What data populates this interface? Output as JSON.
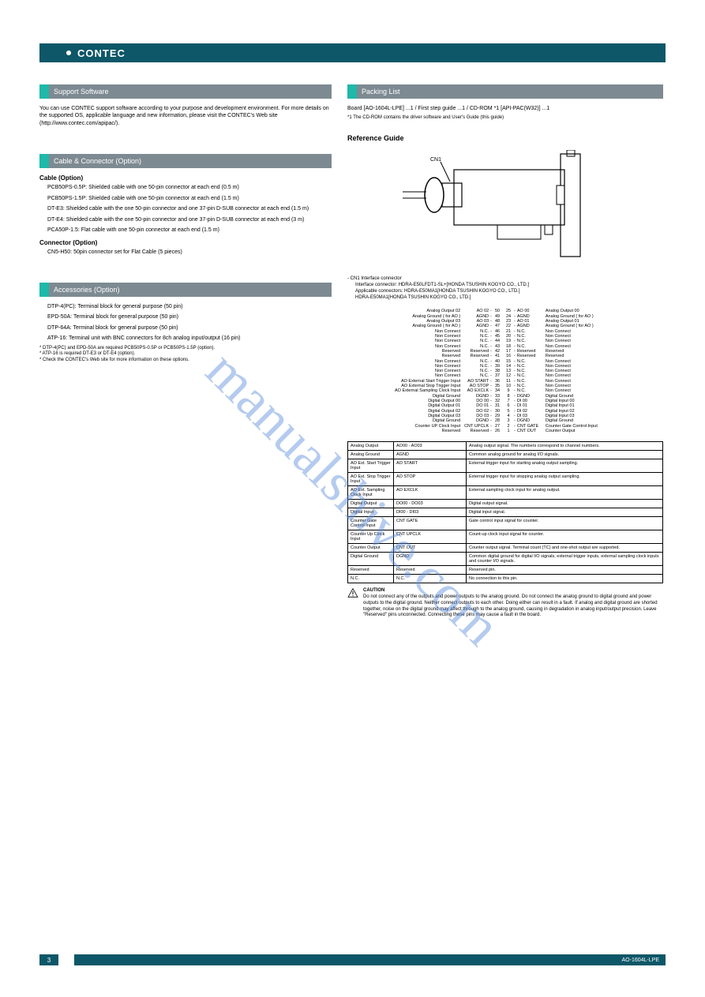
{
  "header": {
    "brand": "CONTEC"
  },
  "left": {
    "sec1": {
      "title": "Support Software",
      "body": "You can use CONTEC support software according to your purpose and development environment. For more details on the supported OS, applicable language and new information, please visit the CONTEC's Web site (http://www.contec.com/apipac/)."
    },
    "sec2": {
      "title": "Cable & Connector (Option)",
      "sub1": "Cable (Option)",
      "cables": [
        "PCB50PS-0.5P: Shielded cable with one 50-pin connector at each end (0.5 m)",
        "PCB50PS-1.5P: Shielded cable with one 50-pin connector at each end (1.5 m)",
        "DT-E3: Shielded cable with the one 50-pin connector and one 37-pin D-SUB connector at each end (1.5 m)",
        "DT-E4: Shielded cable with the one 50-pin connector and one 37-pin D-SUB connector at each end (3 m)",
        "PCA50P-1.5: Flat cable with one 50-pin connector at each end (1.5 m)"
      ],
      "sub2": "Connector (Option)",
      "connector": "CN5-H50: 50pin connector set for Flat Cable (5 pieces)"
    },
    "sec3": {
      "title": "Accessories (Option)",
      "items": [
        "DTP-4(PC): Terminal block for general purpose (50 pin)",
        "EPD-50A: Terminal block for general purpose (50 pin)",
        "DTP-64A: Terminal block for general purpose (50 pin)",
        "ATP-16: Terminal unit with BNC connectors for 8ch analog input/output (16 pin)"
      ],
      "notes": [
        "* DTP-4(PC) and EPD-50A are required PCB50PS-0.5P or PCB50PS-1.5P (option).",
        "* ATP-16 is required DT-E3 or DT-E4 (option).",
        "* Check the CONTEC's Web site for more information on these options."
      ]
    }
  },
  "right": {
    "sec_title": "Packing List",
    "packing": "Board [AO-1604L-LPE] ...1 / First step guide ...1 / CD-ROM *1 [API-PAC(W32)] ...1",
    "packing_note": "*1 The CD-ROM contains the driver software and User's Guide (this guide)",
    "ref_title": "Reference Guide",
    "connector_caption": "- CN1 Interface connector",
    "cn1_info": [
      "Interface connector: HDRA-E50LFDT1-SL+[HONDA TSUSHIN KOGYO CO., LTD.]",
      "Applicable connectors: HDRA-E50MA1[HONDA TSUSHIN KOGYO CO., LTD.]",
      "HDRA-E50MA1[HONDA TSUSHIN KOGYO CO., LTD.]"
    ],
    "pins": [
      [
        "Analog Output 02",
        "AO 02",
        "50",
        "25",
        "AO 00",
        "Analog Output 00"
      ],
      [
        "Analog Ground ( for AO )",
        "AGND",
        "49",
        "24",
        "AGND",
        "Analog Ground ( for AO )"
      ],
      [
        "Analog Output 03",
        "AO 03",
        "48",
        "23",
        "AO 01",
        "Analog Output 01"
      ],
      [
        "Analog Ground ( for AO )",
        "AGND",
        "47",
        "22",
        "AGND",
        "Analog Ground ( for AO )"
      ],
      [
        "Non Connect",
        "N.C.",
        "46",
        "21",
        "N.C.",
        "Non Connect"
      ],
      [
        "Non Connect",
        "N.C.",
        "45",
        "20",
        "N.C.",
        "Non Connect"
      ],
      [
        "Non Connect",
        "N.C.",
        "44",
        "19",
        "N.C.",
        "Non Connect"
      ],
      [
        "Non Connect",
        "N.C.",
        "43",
        "18",
        "N.C.",
        "Non Connect"
      ],
      [
        "Reserved",
        "Reserved",
        "42",
        "17",
        "Reserved",
        "Reserved"
      ],
      [
        "Reserved",
        "Reserved",
        "41",
        "16",
        "Reserved",
        "Reserved"
      ],
      [
        "Non Connect",
        "N.C.",
        "40",
        "15",
        "N.C.",
        "Non Connect"
      ],
      [
        "Non Connect",
        "N.C.",
        "39",
        "14",
        "N.C.",
        "Non Connect"
      ],
      [
        "Non Connect",
        "N.C.",
        "38",
        "13",
        "N.C.",
        "Non Connect"
      ],
      [
        "Non Connect",
        "N.C.",
        "37",
        "12",
        "N.C.",
        "Non Connect"
      ],
      [
        "AO External Start Trigger Input",
        "AO START",
        "36",
        "11",
        "N.C.",
        "Non Connect"
      ],
      [
        "AO External Stop Trigger Input",
        "AO STOP",
        "35",
        "10",
        "N.C.",
        "Non Connect"
      ],
      [
        "AO External Sampling Clock Input",
        "AO EXCLK",
        "34",
        "9",
        "N.C.",
        "Non Connect"
      ],
      [
        "Digital Ground",
        "DGND",
        "33",
        "8",
        "DGND",
        "Digital Ground"
      ],
      [
        "Digital Output 00",
        "DO 00",
        "32",
        "7",
        "DI 00",
        "Digital Input 00"
      ],
      [
        "Digital Output 01",
        "DO 01",
        "31",
        "6",
        "DI 01",
        "Digital Input 01"
      ],
      [
        "Digital Output 02",
        "DO 02",
        "30",
        "5",
        "DI 02",
        "Digital Input 02"
      ],
      [
        "Digital Output 03",
        "DO 03",
        "29",
        "4",
        "DI 03",
        "Digital Input 03"
      ],
      [
        "Digital Ground",
        "DGND",
        "28",
        "3",
        "DGND",
        "Digital Ground"
      ],
      [
        "Counter UP Clock Input",
        "CNT UPCLK",
        "27",
        "2",
        "CNT GATE",
        "Counter Gate Control Input"
      ],
      [
        "Reserved",
        "Reserved",
        "26",
        "1",
        "CNT OUT",
        "Counter Output"
      ]
    ],
    "table": [
      [
        "Analog Output",
        "AO00 - AO03",
        "Analog output signal. The numbers correspond to channel numbers."
      ],
      [
        "Analog Ground",
        "AGND",
        "Common analog ground for analog I/O signals."
      ],
      [
        "AO Ext. Start Trigger Input",
        "AO START",
        "External trigger input for starting analog output sampling."
      ],
      [
        "AO Ext. Stop Trigger Input",
        "AO STOP",
        "External trigger input for stopping analog output sampling."
      ],
      [
        "AO Ext. Sampling Clock Input",
        "AO EXCLK",
        "External sampling clock input for analog output."
      ],
      [
        "Digital Output",
        "DO00 - DO03",
        "Digital output signal."
      ],
      [
        "Digital Input",
        "DI00 - DI03",
        "Digital input signal."
      ],
      [
        "Counter Gate Control Input",
        "CNT GATE",
        "Gate control input signal for counter."
      ],
      [
        "Counter Up Clock Input",
        "CNT UPCLK",
        "Count-up clock input signal for counter."
      ],
      [
        "Counter Output",
        "CNT OUT",
        "Counter output signal. Terminal count (TC) and one-shot output are supported."
      ],
      [
        "Digital Ground",
        "DGND",
        "Common digital ground for digital I/O signals, external trigger inputs, external sampling clock inputs and counter I/O signals."
      ],
      [
        "Reserved",
        "Reserved",
        "Reserved pin."
      ],
      [
        "N.C.",
        "N.C.",
        "No connection to this pin."
      ]
    ],
    "caution": {
      "label": "CAUTION",
      "text": "Do not connect any of the outputs and power outputs to the analog ground. Do not connect the analog ground to digital ground and power outputs to the digital ground. Neither connect outputs to each other. Doing either can result in a fault. If analog and digital ground are shorted together, noise on the digital ground may affect through to the analog ground, causing in degradation in analog input/output precision. Leave \"Reserved\" pins unconnected. Connecting these pins may cause a fault in the board."
    }
  },
  "footer": {
    "page": "3",
    "model": "AO-1604L-LPE"
  },
  "watermark": "manualshive.com"
}
